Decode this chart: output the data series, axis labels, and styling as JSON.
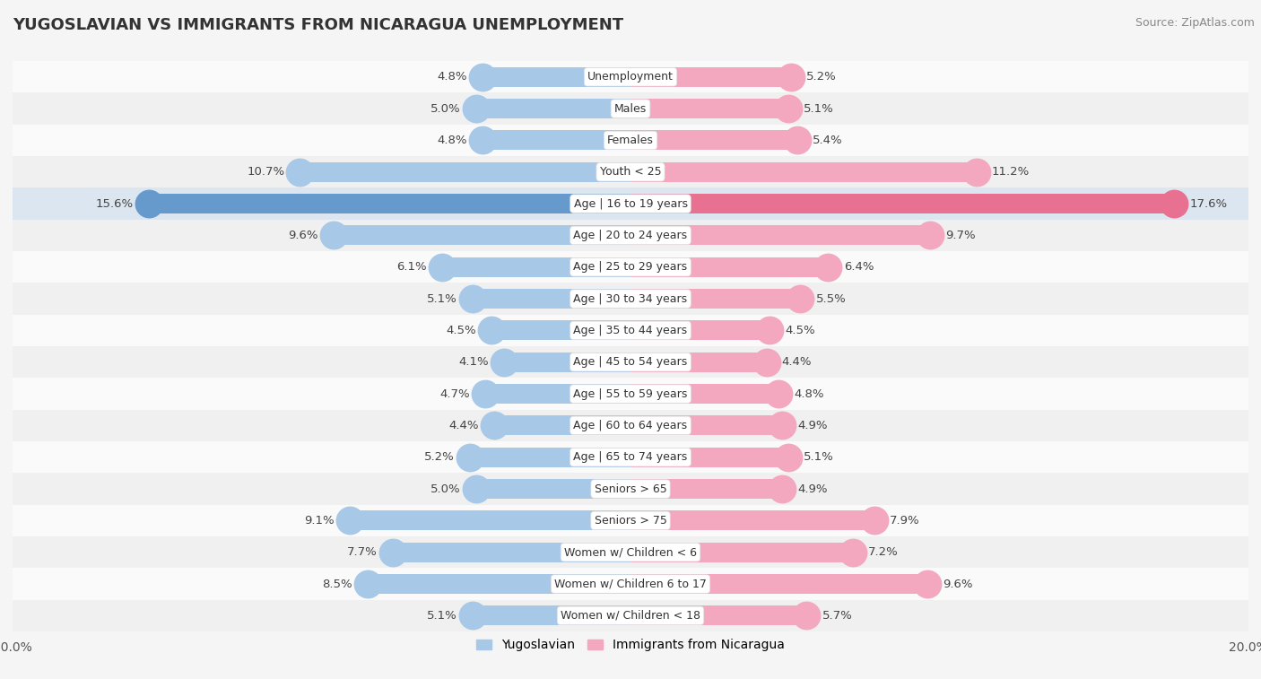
{
  "title": "YUGOSLAVIAN VS IMMIGRANTS FROM NICARAGUA UNEMPLOYMENT",
  "source": "Source: ZipAtlas.com",
  "categories": [
    "Unemployment",
    "Males",
    "Females",
    "Youth < 25",
    "Age | 16 to 19 years",
    "Age | 20 to 24 years",
    "Age | 25 to 29 years",
    "Age | 30 to 34 years",
    "Age | 35 to 44 years",
    "Age | 45 to 54 years",
    "Age | 55 to 59 years",
    "Age | 60 to 64 years",
    "Age | 65 to 74 years",
    "Seniors > 65",
    "Seniors > 75",
    "Women w/ Children < 6",
    "Women w/ Children 6 to 17",
    "Women w/ Children < 18"
  ],
  "yugoslavian": [
    4.8,
    5.0,
    4.8,
    10.7,
    15.6,
    9.6,
    6.1,
    5.1,
    4.5,
    4.1,
    4.7,
    4.4,
    5.2,
    5.0,
    9.1,
    7.7,
    8.5,
    5.1
  ],
  "nicaragua": [
    5.2,
    5.1,
    5.4,
    11.2,
    17.6,
    9.7,
    6.4,
    5.5,
    4.5,
    4.4,
    4.8,
    4.9,
    5.1,
    4.9,
    7.9,
    7.2,
    9.6,
    5.7
  ],
  "yugoslavian_color": "#a8c8e8",
  "nicaragua_color": "#f4a8c0",
  "yugoslavian_highlight_color": "#6699cc",
  "nicaragua_highlight_color": "#e87090",
  "bar_height": 0.62,
  "xlim": 20.0,
  "background_color": "#f5f5f5",
  "row_color_odd": "#f0f0f0",
  "row_color_even": "#fafafa",
  "highlight_row_color": "#dce6f0",
  "label_bg_color": "#ffffff",
  "legend_yugoslavian": "Yugoslavian",
  "legend_nicaragua": "Immigrants from Nicaragua",
  "value_fontsize": 9.5,
  "label_fontsize": 9.0,
  "title_fontsize": 13,
  "source_fontsize": 9
}
